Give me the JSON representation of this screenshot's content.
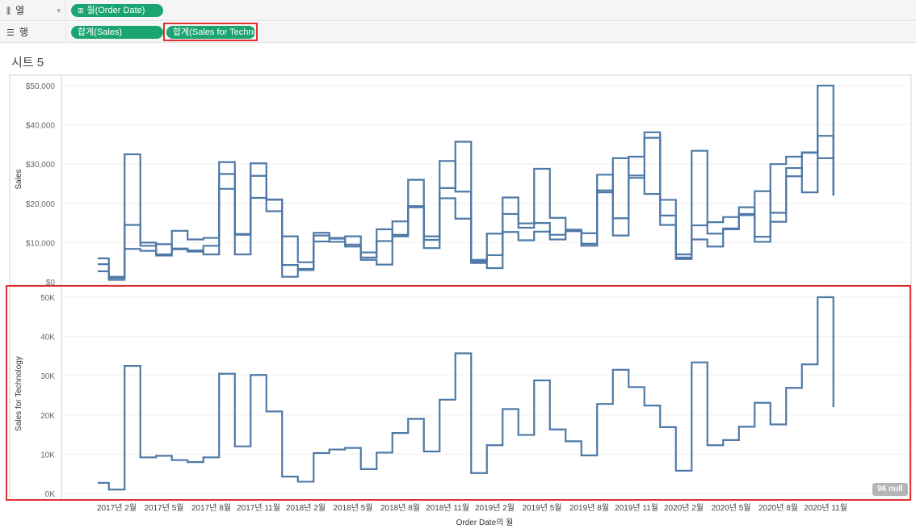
{
  "shelves": {
    "columns": {
      "label": "열",
      "icon": "columns-icon",
      "pills": [
        "월(Order Date)"
      ]
    },
    "rows": {
      "label": "행",
      "icon": "rows-icon",
      "pills": [
        "합계(Sales)",
        "합계(Sales for Technolo.."
      ]
    }
  },
  "sheet_title": "시트 5",
  "null_badge": "96 null",
  "colors": {
    "line": "#4e79a7",
    "pill": "#1aa472",
    "highlight": "#e03030"
  },
  "chart_data": [
    {
      "type": "line",
      "line_style": "step",
      "ylabel": "Sales",
      "ylim": [
        0,
        52000
      ],
      "yticks": [
        "$0",
        "$10,000",
        "$20,000",
        "$30,000",
        "$40,000",
        "$50,000"
      ],
      "ytick_values": [
        0,
        10000,
        20000,
        30000,
        40000,
        50000
      ],
      "x": [
        "2017-01",
        "2017-02",
        "2017-03",
        "2017-04",
        "2017-05",
        "2017-06",
        "2017-07",
        "2017-08",
        "2017-09",
        "2017-10",
        "2017-11",
        "2017-12",
        "2018-01",
        "2018-02",
        "2018-03",
        "2018-04",
        "2018-05",
        "2018-06",
        "2018-07",
        "2018-08",
        "2018-09",
        "2018-10",
        "2018-11",
        "2018-12",
        "2019-01",
        "2019-02",
        "2019-03",
        "2019-04",
        "2019-05",
        "2019-06",
        "2019-07",
        "2019-08",
        "2019-09",
        "2019-10",
        "2019-11",
        "2019-12",
        "2020-01",
        "2020-02",
        "2020-03",
        "2020-04",
        "2020-05",
        "2020-06",
        "2020-07",
        "2020-08",
        "2020-09",
        "2020-10",
        "2020-11",
        "2020-12"
      ],
      "series": [
        {
          "values": [
            2700,
            1000,
            32500,
            9200,
            9600,
            8500,
            8000,
            9200,
            30500,
            12000,
            30200,
            20900,
            4300,
            3000,
            10300,
            11200,
            11600,
            6200,
            10400,
            15400,
            19000,
            10700,
            23900,
            35700,
            5200,
            12300,
            21500,
            14900,
            28800,
            16300,
            13300,
            9700,
            22800,
            31500,
            27100,
            22400,
            16900,
            5800,
            33400,
            12300,
            13600,
            17000,
            23100,
            17600,
            26900,
            32900,
            50000,
            22000
          ]
        },
        {
          "values": [
            4500,
            1300,
            14500,
            10000,
            7000,
            13000,
            10800,
            11200,
            27500,
            12200,
            27000,
            18000,
            11600,
            5000,
            12500,
            11000,
            9000,
            7500,
            13400,
            12000,
            26000,
            11600,
            30800,
            23000,
            5600,
            6800,
            17300,
            13800,
            15000,
            12000,
            12900,
            9200,
            23300,
            16200,
            26500,
            36700,
            14500,
            7000,
            10800,
            9000,
            13400,
            17300,
            10200,
            30000,
            31900,
            33000,
            31500,
            22000
          ]
        },
        {
          "values": [
            6000,
            500,
            8400,
            7900,
            6700,
            8300,
            7700,
            7000,
            23700,
            7000,
            21400,
            21000,
            1300,
            3300,
            11800,
            10200,
            9500,
            5600,
            4400,
            11600,
            19300,
            8600,
            21300,
            16100,
            4800,
            3500,
            12700,
            10600,
            12800,
            10800,
            13000,
            12400,
            27300,
            11800,
            31900,
            38100,
            20900,
            6200,
            14400,
            15200,
            16500,
            19000,
            11500,
            15300,
            29000,
            22800,
            37200,
            22000
          ]
        }
      ]
    },
    {
      "type": "line",
      "line_style": "step",
      "ylabel": "Sales for Technology",
      "ylim": [
        0,
        52000
      ],
      "yticks": [
        "0K",
        "10K",
        "20K",
        "30K",
        "40K",
        "50K"
      ],
      "ytick_values": [
        0,
        10000,
        20000,
        30000,
        40000,
        50000
      ],
      "x_ticks": [
        "2017년 2월",
        "2017년 5월",
        "2017년 8월",
        "2017년 11월",
        "2018년 2월",
        "2018년 5월",
        "2018년 8월",
        "2018년 11월",
        "2019년 2월",
        "2019년 5월",
        "2019년 8월",
        "2019년 11월",
        "2020년 2월",
        "2020년 5월",
        "2020년 8월",
        "2020년 11월"
      ],
      "xlabel": "Order Date의 월",
      "series": [
        {
          "values": [
            2700,
            1000,
            32500,
            9200,
            9600,
            8500,
            8000,
            9200,
            30500,
            12000,
            30200,
            20900,
            4300,
            3000,
            10300,
            11200,
            11600,
            6200,
            10400,
            15400,
            19000,
            10700,
            23900,
            35700,
            5200,
            12300,
            21500,
            14900,
            28800,
            16300,
            13300,
            9700,
            22800,
            31500,
            27100,
            22400,
            16900,
            5800,
            33400,
            12300,
            13600,
            17000,
            23100,
            17600,
            26900,
            32900,
            50000,
            22000
          ]
        }
      ]
    }
  ]
}
